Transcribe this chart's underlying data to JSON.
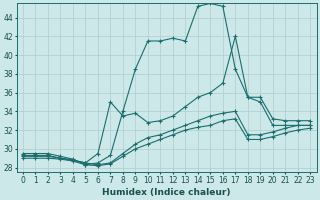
{
  "xlabel": "Humidex (Indice chaleur)",
  "bg_color": "#cde8e8",
  "line_color": "#1a6e6e",
  "grid_color": "#b0cccc",
  "ylim": [
    27.5,
    45.5
  ],
  "xlim": [
    -0.5,
    23.5
  ],
  "yticks": [
    28,
    30,
    32,
    34,
    36,
    38,
    40,
    42,
    44
  ],
  "xticks": [
    0,
    1,
    2,
    3,
    4,
    5,
    6,
    7,
    8,
    9,
    10,
    11,
    12,
    13,
    14,
    15,
    16,
    17,
    18,
    19,
    20,
    21,
    22,
    23
  ],
  "line1_x": [
    0,
    1,
    2,
    3,
    4,
    5,
    6,
    7,
    8,
    9,
    10,
    11,
    12,
    13,
    14,
    15,
    16,
    17,
    18,
    19,
    20,
    21,
    22,
    23
  ],
  "line1_y": [
    29.5,
    29.5,
    29.5,
    29.2,
    28.9,
    28.3,
    28.5,
    29.3,
    34.0,
    38.5,
    41.5,
    41.5,
    41.8,
    41.5,
    45.2,
    45.5,
    45.2,
    38.5,
    35.5,
    35.0,
    32.5,
    32.5,
    32.5,
    32.5
  ],
  "line2_x": [
    0,
    1,
    2,
    3,
    4,
    5,
    6,
    7,
    8,
    9,
    10,
    11,
    12,
    13,
    14,
    15,
    16,
    17,
    18,
    19,
    20,
    21,
    22,
    23
  ],
  "line2_y": [
    29.3,
    29.3,
    29.3,
    29.0,
    28.8,
    28.5,
    29.5,
    35.0,
    33.5,
    33.8,
    32.8,
    33.0,
    33.5,
    34.5,
    35.5,
    36.0,
    37.0,
    42.0,
    35.5,
    35.5,
    33.2,
    33.0,
    33.0,
    33.0
  ],
  "line3_x": [
    0,
    1,
    2,
    3,
    4,
    5,
    6,
    7,
    8,
    9,
    10,
    11,
    12,
    13,
    14,
    15,
    16,
    17,
    18,
    19,
    20,
    21,
    22,
    23
  ],
  "line3_y": [
    29.2,
    29.2,
    29.2,
    29.0,
    28.8,
    28.5,
    28.3,
    28.5,
    29.5,
    30.5,
    31.2,
    31.5,
    32.0,
    32.5,
    33.0,
    33.5,
    33.8,
    34.0,
    31.5,
    31.5,
    31.8,
    32.2,
    32.5,
    32.5
  ],
  "line4_x": [
    0,
    1,
    2,
    3,
    4,
    5,
    6,
    7,
    8,
    9,
    10,
    11,
    12,
    13,
    14,
    15,
    16,
    17,
    18,
    19,
    20,
    21,
    22,
    23
  ],
  "line4_y": [
    29.0,
    29.0,
    29.0,
    28.9,
    28.7,
    28.3,
    28.2,
    28.4,
    29.2,
    30.0,
    30.5,
    31.0,
    31.5,
    32.0,
    32.3,
    32.5,
    33.0,
    33.2,
    31.0,
    31.0,
    31.3,
    31.7,
    32.0,
    32.2
  ]
}
